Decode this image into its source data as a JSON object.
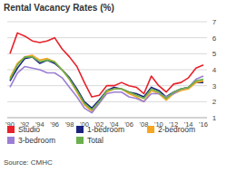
{
  "chart_data": {
    "type": "line",
    "title": "Rental Vacancy Rates (%)",
    "source": "Source: CMHC",
    "categories": [
      "'90",
      null,
      "'92",
      null,
      "'94",
      null,
      "'96",
      null,
      "'98",
      null,
      "'00",
      null,
      "'02",
      null,
      "'04",
      null,
      "'06",
      null,
      "'08",
      null,
      "'10",
      null,
      "'12",
      null,
      "'14",
      null,
      "'16"
    ],
    "series": [
      {
        "name": "Studio",
        "color": "#e8212a",
        "values": [
          5.0,
          6.3,
          6.1,
          5.8,
          5.7,
          5.8,
          6.0,
          5.3,
          4.8,
          4.2,
          3.2,
          2.3,
          2.4,
          3.0,
          3.0,
          3.2,
          3.0,
          2.9,
          2.5,
          3.6,
          3.0,
          2.6,
          3.1,
          3.2,
          3.5,
          4.1,
          4.3
        ]
      },
      {
        "name": "1-bedroom",
        "color": "#1a237e",
        "values": [
          3.3,
          4.1,
          4.7,
          4.8,
          4.4,
          4.6,
          4.4,
          4.0,
          3.5,
          2.8,
          2.0,
          1.6,
          2.1,
          2.7,
          2.9,
          2.8,
          2.6,
          2.5,
          2.3,
          2.9,
          2.7,
          2.3,
          2.6,
          2.8,
          2.9,
          3.2,
          3.2
        ]
      },
      {
        "name": "2-bedroom",
        "color": "#f5a623",
        "values": [
          3.5,
          4.4,
          4.8,
          4.9,
          4.6,
          4.7,
          4.5,
          4.0,
          3.4,
          2.6,
          1.8,
          1.4,
          1.9,
          2.6,
          2.8,
          2.8,
          2.5,
          2.3,
          2.0,
          2.7,
          2.5,
          2.1,
          2.5,
          2.7,
          2.8,
          3.2,
          3.3
        ]
      },
      {
        "name": "3-bedroom",
        "color": "#9b7fd4",
        "values": [
          2.9,
          3.8,
          4.2,
          4.1,
          4.0,
          3.8,
          3.8,
          3.5,
          2.9,
          2.3,
          1.6,
          1.3,
          1.9,
          2.5,
          2.6,
          2.6,
          2.3,
          2.2,
          2.0,
          2.5,
          2.5,
          2.3,
          2.5,
          2.8,
          2.9,
          3.4,
          3.6
        ]
      },
      {
        "name": "Total",
        "color": "#6ab04c",
        "values": [
          3.4,
          4.3,
          4.8,
          4.8,
          4.5,
          4.6,
          4.5,
          4.0,
          3.4,
          2.7,
          1.9,
          1.5,
          2.0,
          2.7,
          2.8,
          2.8,
          2.6,
          2.4,
          2.2,
          2.8,
          2.6,
          2.2,
          2.6,
          2.8,
          2.9,
          3.3,
          3.4
        ]
      }
    ],
    "ylim": [
      1,
      7
    ],
    "yticks": [
      1,
      2,
      3,
      4,
      5,
      6,
      7
    ],
    "grid": true,
    "legend": "bottom"
  }
}
